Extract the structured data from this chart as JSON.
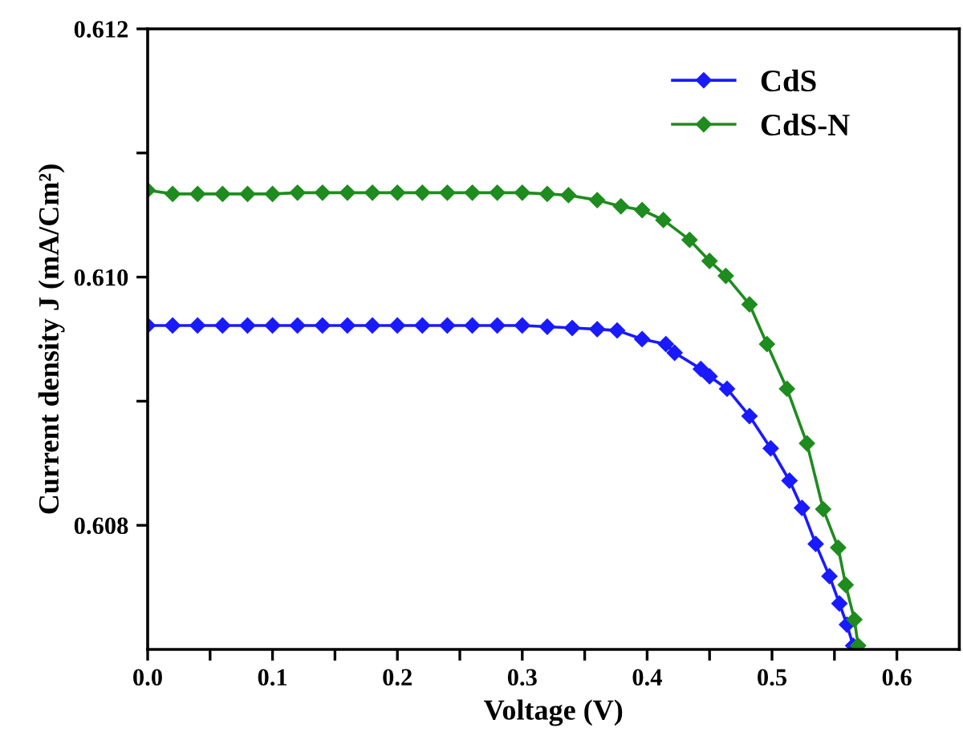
{
  "chart_data": {
    "type": "line",
    "xlabel": "Voltage (V)",
    "ylabel": "Current density J (mA/Cm²)",
    "xlim": [
      0,
      0.65
    ],
    "ylim": [
      0.607,
      0.612
    ],
    "xticks": [
      {
        "value": 0.0,
        "label": "0.0"
      },
      {
        "value": 0.05,
        "label": null
      },
      0.1,
      {
        "value": 0.15,
        "label": null
      },
      0.2,
      {
        "value": 0.25,
        "label": null
      },
      0.3,
      {
        "value": 0.35,
        "label": null
      },
      0.4,
      {
        "value": 0.45,
        "label": null
      },
      0.5,
      {
        "value": 0.55,
        "label": null
      },
      0.6
    ],
    "yticks": [
      {
        "value": 0.608,
        "label": "0.608"
      },
      {
        "value": 0.609,
        "label": null
      },
      {
        "value": 0.61,
        "label": "0.610"
      },
      {
        "value": 0.611,
        "label": null
      },
      {
        "value": 0.612,
        "label": "0.612"
      }
    ],
    "legend": "top right",
    "marker": "diamond",
    "grid": false,
    "series": [
      {
        "name": "CdS",
        "color": "#1a1aff",
        "x": [
          0,
          0.02,
          0.04,
          0.06,
          0.08,
          0.1,
          0.12,
          0.14,
          0.16,
          0.18,
          0.2,
          0.22,
          0.24,
          0.26,
          0.28,
          0.3,
          0.32,
          0.34,
          0.36,
          0.376,
          0.396,
          0.415,
          0.422,
          0.443,
          0.45,
          0.464,
          0.482,
          0.499,
          0.514,
          0.524,
          0.535,
          0.546,
          0.554,
          0.56,
          0.565
        ],
        "values": [
          0.60961,
          0.60961,
          0.60961,
          0.60961,
          0.60961,
          0.60961,
          0.60961,
          0.60961,
          0.60961,
          0.60961,
          0.60961,
          0.60961,
          0.60961,
          0.60961,
          0.60961,
          0.60961,
          0.6096,
          0.60959,
          0.60958,
          0.60957,
          0.6095,
          0.60946,
          0.60939,
          0.60926,
          0.6092,
          0.6091,
          0.60888,
          0.60862,
          0.60836,
          0.60814,
          0.60785,
          0.60759,
          0.60737,
          0.6072,
          0.60703
        ]
      },
      {
        "name": "CdS-N",
        "color": "#1e8c1e",
        "x": [
          0,
          0.02,
          0.04,
          0.06,
          0.08,
          0.1,
          0.12,
          0.14,
          0.16,
          0.18,
          0.2,
          0.22,
          0.24,
          0.26,
          0.28,
          0.3,
          0.32,
          0.337,
          0.36,
          0.379,
          0.396,
          0.413,
          0.434,
          0.45,
          0.463,
          0.482,
          0.496,
          0.512,
          0.528,
          0.541,
          0.553,
          0.559,
          0.566,
          0.569
        ],
        "values": [
          0.6107,
          0.61067,
          0.61067,
          0.61067,
          0.61067,
          0.61067,
          0.61068,
          0.61068,
          0.61068,
          0.61068,
          0.61068,
          0.61068,
          0.61068,
          0.61068,
          0.61068,
          0.61068,
          0.61067,
          0.61066,
          0.61062,
          0.61057,
          0.61054,
          0.61046,
          0.6103,
          0.61013,
          0.61001,
          0.60978,
          0.60946,
          0.6091,
          0.60866,
          0.60813,
          0.60782,
          0.60752,
          0.60724,
          0.60703
        ]
      }
    ]
  }
}
